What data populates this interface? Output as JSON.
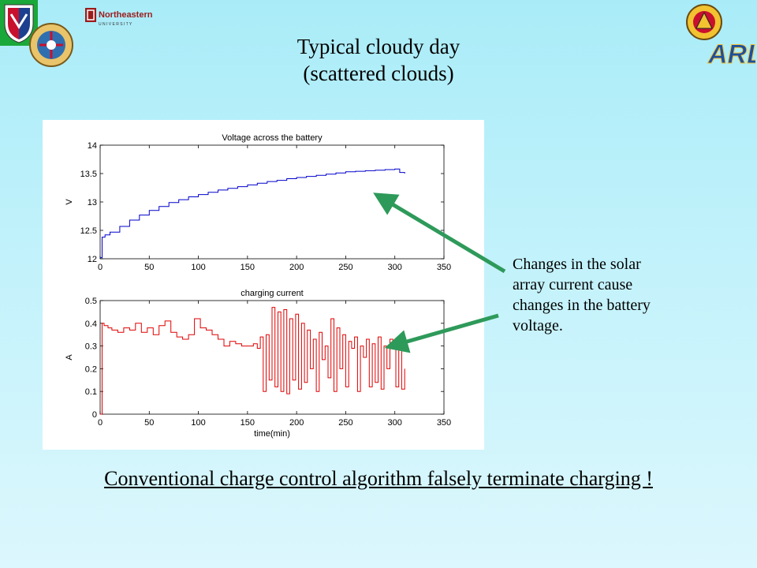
{
  "slide": {
    "title_line1": "Typical cloudy day",
    "title_line2": "(scattered clouds)",
    "callout_lines": [
      "Changes in the solar",
      "array current cause",
      "changes in the battery",
      "voltage."
    ],
    "conclusion": "Conventional  charge  control algorithm falsely terminate charging !",
    "logos": {
      "northeastern_text": "Northeastern",
      "northeastern_sub": "U N I V E R S I T Y",
      "arl_text": "ARL"
    },
    "colors": {
      "voltage_line": "#0000cc",
      "current_line": "#e00000",
      "arrow": "#2e9a5a",
      "background": "#b8effa"
    }
  },
  "chart_data": [
    {
      "type": "line",
      "title": "Voltage across the battery",
      "xlabel": "",
      "ylabel": "V",
      "xlim": [
        0,
        350
      ],
      "ylim": [
        12,
        14
      ],
      "xticks": [
        "0",
        "50",
        "100",
        "150",
        "200",
        "250",
        "300",
        "350"
      ],
      "yticks": [
        "12",
        "12.5",
        "13",
        "13.5",
        "14"
      ],
      "x": [
        0,
        2,
        5,
        10,
        20,
        30,
        40,
        50,
        60,
        70,
        80,
        90,
        100,
        110,
        120,
        130,
        140,
        150,
        160,
        170,
        180,
        190,
        200,
        210,
        220,
        230,
        240,
        250,
        260,
        270,
        280,
        290,
        300,
        305,
        310
      ],
      "y": [
        12.02,
        12.38,
        12.42,
        12.47,
        12.57,
        12.68,
        12.77,
        12.85,
        12.92,
        12.99,
        13.04,
        13.09,
        13.13,
        13.17,
        13.21,
        13.24,
        13.27,
        13.3,
        13.33,
        13.36,
        13.38,
        13.41,
        13.43,
        13.45,
        13.47,
        13.49,
        13.51,
        13.53,
        13.54,
        13.55,
        13.56,
        13.57,
        13.58,
        13.52,
        13.5
      ]
    },
    {
      "type": "line",
      "title": "charging current",
      "xlabel": "time(min)",
      "ylabel": "A",
      "xlim": [
        0,
        350
      ],
      "ylim": [
        0,
        0.5
      ],
      "xticks": [
        "0",
        "50",
        "100",
        "150",
        "200",
        "250",
        "300",
        "350"
      ],
      "yticks": [
        "0",
        "0.1",
        "0.2",
        "0.3",
        "0.4",
        "0.5"
      ],
      "x": [
        0,
        2,
        4,
        8,
        12,
        18,
        24,
        30,
        36,
        42,
        48,
        54,
        60,
        66,
        72,
        78,
        84,
        90,
        96,
        102,
        108,
        114,
        120,
        126,
        132,
        138,
        144,
        150,
        156,
        160,
        163,
        166,
        169,
        172,
        175,
        178,
        181,
        184,
        187,
        190,
        193,
        196,
        199,
        202,
        205,
        208,
        211,
        214,
        217,
        220,
        223,
        226,
        229,
        232,
        235,
        238,
        241,
        244,
        247,
        250,
        253,
        256,
        259,
        262,
        265,
        268,
        271,
        274,
        277,
        280,
        283,
        286,
        289,
        292,
        295,
        298,
        301,
        304,
        307,
        310
      ],
      "y": [
        0.0,
        0.4,
        0.39,
        0.38,
        0.37,
        0.36,
        0.38,
        0.37,
        0.4,
        0.36,
        0.38,
        0.35,
        0.39,
        0.41,
        0.36,
        0.34,
        0.33,
        0.35,
        0.42,
        0.38,
        0.37,
        0.35,
        0.33,
        0.3,
        0.32,
        0.31,
        0.3,
        0.3,
        0.31,
        0.29,
        0.34,
        0.1,
        0.35,
        0.15,
        0.47,
        0.12,
        0.45,
        0.1,
        0.46,
        0.09,
        0.42,
        0.15,
        0.44,
        0.11,
        0.4,
        0.14,
        0.37,
        0.2,
        0.33,
        0.1,
        0.36,
        0.24,
        0.3,
        0.16,
        0.42,
        0.1,
        0.38,
        0.2,
        0.35,
        0.12,
        0.32,
        0.29,
        0.34,
        0.1,
        0.3,
        0.25,
        0.33,
        0.12,
        0.31,
        0.14,
        0.34,
        0.11,
        0.3,
        0.2,
        0.33,
        0.31,
        0.12,
        0.3,
        0.11,
        0.2
      ]
    }
  ]
}
